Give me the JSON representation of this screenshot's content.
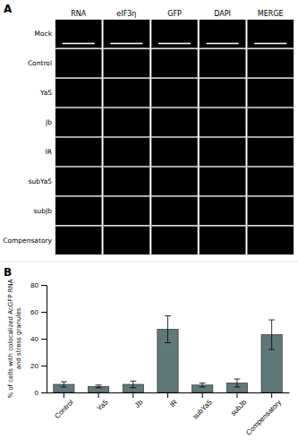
{
  "chart_data": [
    {
      "type": "image_grid",
      "title": "A",
      "columns": [
        "RNA",
        "eIF3η",
        "GFP",
        "DAPI",
        "MERGE"
      ],
      "rows": [
        "Mock",
        "Control",
        "Ya5",
        "Jb",
        "IR",
        "subYa5",
        "subJb",
        "Compensatory"
      ],
      "color": "#000000"
    },
    {
      "type": "bar",
      "title": "B",
      "categories": [
        "Control",
        "Ya5",
        "Jb",
        "IR",
        "subYa5",
        "subJb",
        "Compensatory"
      ],
      "values": [
        6.0,
        4.5,
        6.0,
        47.0,
        5.5,
        7.0,
        43.0
      ],
      "errors": [
        2.0,
        1.0,
        2.5,
        10.0,
        1.5,
        3.0,
        11.0
      ],
      "color": "#607878",
      "ylabel": "% of cells with colocalized AcGFP RNA\nand stress granules",
      "ylim": [
        0,
        80
      ],
      "yticks": [
        0,
        20,
        40,
        60,
        80
      ]
    }
  ]
}
